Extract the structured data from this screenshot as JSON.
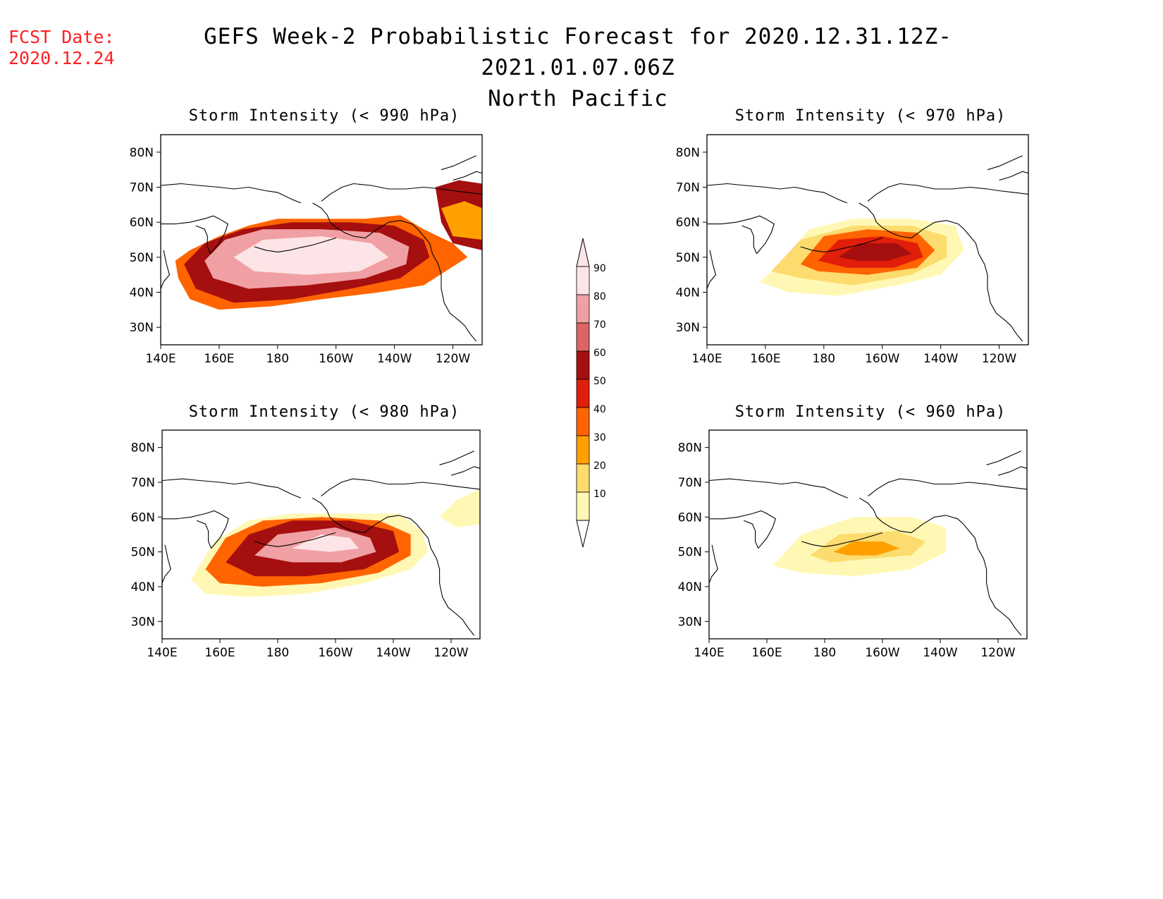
{
  "header": {
    "fcst_label": "FCST Date:",
    "fcst_date": "2020.12.24",
    "title_line1": "GEFS Week-2 Probabilistic Forecast for 2020.12.31.12Z-2021.01.07.06Z",
    "title_line2": "North Pacific"
  },
  "panels": [
    {
      "title": "Storm Intensity (< 990 hPa)",
      "threshold_hpa": 990
    },
    {
      "title": "Storm Intensity (< 970 hPa)",
      "threshold_hpa": 970
    },
    {
      "title": "Storm Intensity (< 980 hPa)",
      "threshold_hpa": 980
    },
    {
      "title": "Storm Intensity (< 960 hPa)",
      "threshold_hpa": 960
    }
  ],
  "axes": {
    "lat_labels": [
      "80N",
      "70N",
      "60N",
      "50N",
      "40N",
      "30N"
    ],
    "lon_labels": [
      "140E",
      "160E",
      "180",
      "160W",
      "140W",
      "120W"
    ]
  },
  "colorbar": {
    "levels": [
      "90",
      "80",
      "70",
      "60",
      "50",
      "40",
      "30",
      "20",
      "10"
    ],
    "colors": [
      "#fde4e6",
      "#f0a0a4",
      "#dc6464",
      "#a50f0f",
      "#e01e0a",
      "#ff6400",
      "#ffa000",
      "#fcdc6e",
      "#fff8b4"
    ]
  },
  "colors": {
    "p10": "#fff8b4",
    "p20": "#fcdc6e",
    "p30": "#ffa000",
    "p40": "#ff6400",
    "p50": "#e01e0a",
    "p60": "#a50f0f",
    "p70": "#dc6464",
    "p80": "#f0a0a4",
    "p90": "#fde4e6",
    "fcst_red": "#ff2020"
  }
}
